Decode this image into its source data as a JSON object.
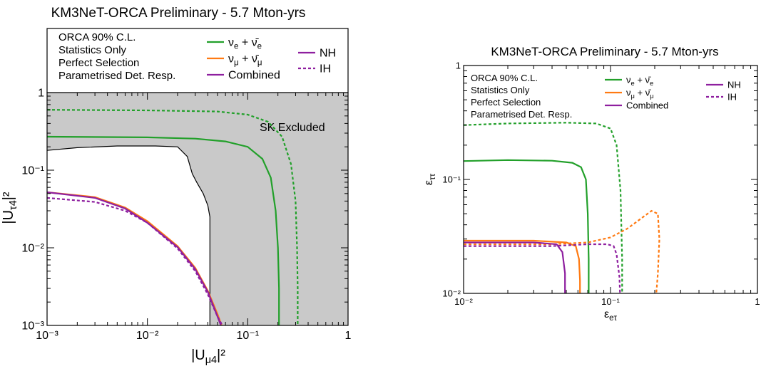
{
  "chart_data": [
    {
      "type": "line",
      "title": "KM3NeT-ORCA Preliminary - 5.7 Mton-yrs",
      "xlabel": "|U_μ4|²",
      "ylabel": "|U_τ4|²",
      "x_scale": "log",
      "y_scale": "log",
      "xlim": [
        0.001,
        1
      ],
      "ylim": [
        0.001,
        1
      ],
      "x_ticks": [
        "10⁻³",
        "10⁻²",
        "10⁻¹",
        "1"
      ],
      "y_ticks": [
        "10⁻³",
        "10⁻²",
        "10⁻¹",
        "1"
      ],
      "legend_placement": "top",
      "legend_info": [
        "ORCA 90% C.L.",
        "Statistics Only",
        "Perfect Selection",
        "Parametrised Det. Resp."
      ],
      "legend": {
        "nue": "ν_e + ν̄_e",
        "numu": "ν_μ + ν̄_μ",
        "combined": "Combined",
        "nh": "NH",
        "ih": "IH"
      },
      "annotation": "SK Excluded",
      "colors": {
        "nue": "#22a02a",
        "numu": "#ff7a12",
        "combined": "#8e1f9f",
        "excluded": "#c9c9c9"
      },
      "excluded_region_boundary": {
        "x": [
          0.001,
          0.002,
          0.005,
          0.012,
          0.02,
          0.025,
          0.028,
          0.031,
          0.036,
          0.04,
          0.042,
          0.042
        ],
        "y": [
          0.18,
          0.195,
          0.205,
          0.205,
          0.2,
          0.15,
          0.09,
          0.07,
          0.05,
          0.035,
          0.025,
          0.001
        ]
      },
      "series": [
        {
          "key": "nue",
          "ordering": "NH",
          "style": "solid",
          "x": [
            0.001,
            0.01,
            0.03,
            0.06,
            0.1,
            0.14,
            0.17,
            0.19,
            0.2,
            0.205,
            0.205
          ],
          "y": [
            0.27,
            0.265,
            0.255,
            0.235,
            0.2,
            0.14,
            0.08,
            0.03,
            0.01,
            0.003,
            0.001
          ]
        },
        {
          "key": "nue",
          "ordering": "IH",
          "style": "dashed",
          "x": [
            0.001,
            0.01,
            0.05,
            0.1,
            0.16,
            0.22,
            0.27,
            0.3,
            0.31,
            0.315,
            0.315
          ],
          "y": [
            0.6,
            0.59,
            0.57,
            0.52,
            0.42,
            0.27,
            0.12,
            0.04,
            0.01,
            0.003,
            0.001
          ]
        },
        {
          "key": "numu",
          "ordering": "NH",
          "style": "solid",
          "x": [
            0.001,
            0.003,
            0.006,
            0.01,
            0.02,
            0.03,
            0.04,
            0.05,
            0.055
          ],
          "y": [
            0.052,
            0.045,
            0.033,
            0.022,
            0.0105,
            0.0055,
            0.0028,
            0.0014,
            0.001
          ]
        },
        {
          "key": "combined",
          "ordering": "NH",
          "style": "solid",
          "x": [
            0.001,
            0.003,
            0.006,
            0.01,
            0.02,
            0.03,
            0.04,
            0.05,
            0.054
          ],
          "y": [
            0.052,
            0.044,
            0.032,
            0.021,
            0.0102,
            0.0053,
            0.0027,
            0.0013,
            0.001
          ]
        },
        {
          "key": "combined",
          "ordering": "IH",
          "style": "dashed",
          "x": [
            0.001,
            0.003,
            0.006,
            0.01,
            0.02,
            0.03,
            0.04,
            0.05,
            0.056
          ],
          "y": [
            0.044,
            0.039,
            0.03,
            0.021,
            0.0098,
            0.005,
            0.0025,
            0.0013,
            0.001
          ]
        }
      ]
    },
    {
      "type": "line",
      "title": "KM3NeT-ORCA Preliminary - 5.7 Mton-yrs",
      "xlabel": "ε_eτ",
      "ylabel": "ε_ττ",
      "x_scale": "log",
      "y_scale": "log",
      "xlim": [
        0.01,
        1
      ],
      "ylim": [
        0.01,
        1
      ],
      "x_ticks": [
        "10⁻²",
        "10⁻¹",
        "1"
      ],
      "y_ticks": [
        "10⁻²",
        "10⁻¹",
        "1"
      ],
      "legend_placement": "top",
      "legend_info": [
        "ORCA 90% C.L.",
        "Statistics Only",
        "Perfect Selection",
        "Parametrised Det. Resp."
      ],
      "legend": {
        "nue": "ν_e + ν̄_e",
        "numu": "ν_μ + ν̄_μ",
        "combined": "Combined",
        "nh": "NH",
        "ih": "IH"
      },
      "colors": {
        "nue": "#22a02a",
        "numu": "#ff7a12",
        "combined": "#8e1f9f"
      },
      "series": [
        {
          "key": "nue",
          "ordering": "NH",
          "style": "solid",
          "x": [
            0.01,
            0.02,
            0.04,
            0.055,
            0.063,
            0.068,
            0.07,
            0.071,
            0.071
          ],
          "y": [
            0.145,
            0.148,
            0.146,
            0.14,
            0.128,
            0.1,
            0.05,
            0.02,
            0.01
          ]
        },
        {
          "key": "nue",
          "ordering": "IH",
          "style": "dashed",
          "x": [
            0.01,
            0.02,
            0.05,
            0.08,
            0.1,
            0.11,
            0.117,
            0.12,
            0.12
          ],
          "y": [
            0.3,
            0.31,
            0.315,
            0.31,
            0.28,
            0.2,
            0.08,
            0.02,
            0.01
          ]
        },
        {
          "key": "numu",
          "ordering": "NH",
          "style": "solid",
          "x": [
            0.01,
            0.03,
            0.05,
            0.058,
            0.061,
            0.062,
            0.062
          ],
          "y": [
            0.029,
            0.029,
            0.028,
            0.026,
            0.02,
            0.013,
            0.01
          ]
        },
        {
          "key": "numu",
          "ordering": "IH",
          "style": "dashed",
          "x": [
            0.01,
            0.04,
            0.07,
            0.1,
            0.13,
            0.16,
            0.19,
            0.21,
            0.215,
            0.21,
            0.205
          ],
          "y": [
            0.027,
            0.027,
            0.028,
            0.031,
            0.037,
            0.045,
            0.053,
            0.05,
            0.03,
            0.015,
            0.01
          ]
        },
        {
          "key": "combined",
          "ordering": "NH",
          "style": "solid",
          "x": [
            0.01,
            0.03,
            0.043,
            0.047,
            0.049,
            0.049
          ],
          "y": [
            0.028,
            0.028,
            0.027,
            0.023,
            0.015,
            0.01
          ]
        },
        {
          "key": "combined",
          "ordering": "IH",
          "style": "dashed",
          "x": [
            0.01,
            0.04,
            0.07,
            0.095,
            0.105,
            0.11,
            0.115,
            0.116
          ],
          "y": [
            0.026,
            0.026,
            0.027,
            0.027,
            0.026,
            0.022,
            0.014,
            0.01
          ]
        }
      ]
    }
  ]
}
